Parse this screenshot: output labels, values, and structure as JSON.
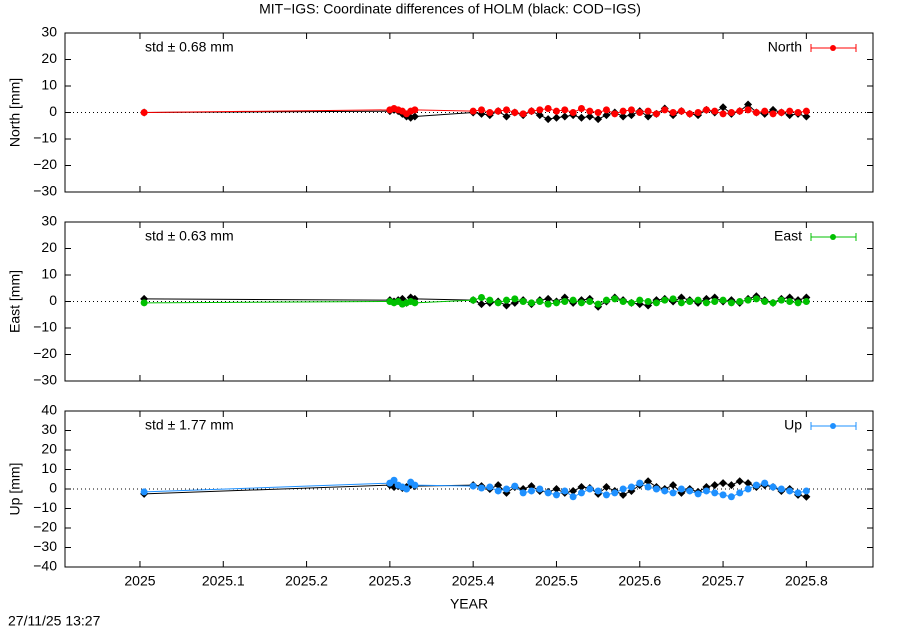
{
  "title": "MIT−IGS: Coordinate differences of HOLM (black: COD−IGS)",
  "xlabel": "YEAR",
  "timestamp": "27/11/25 13:27",
  "chart_data": [
    {
      "type": "line",
      "ylabel": "North [mm]",
      "annotation": "std ± 0.68 mm",
      "xlim": [
        2024.91,
        2025.88
      ],
      "ylim": [
        -30,
        30
      ],
      "xticks": [
        2025,
        2025.1,
        2025.2,
        2025.3,
        2025.4,
        2025.5,
        2025.6,
        2025.7,
        2025.8
      ],
      "yticks": [
        {
          "value": -30,
          "label": "−30"
        },
        {
          "value": -20,
          "label": "−20"
        },
        {
          "value": -10,
          "label": "−10"
        },
        0,
        10,
        20,
        30
      ],
      "x": [
        2025.005,
        2025.3,
        2025.305,
        2025.31,
        2025.315,
        2025.32,
        2025.325,
        2025.33,
        2025.4,
        2025.41,
        2025.42,
        2025.43,
        2025.44,
        2025.45,
        2025.46,
        2025.47,
        2025.48,
        2025.49,
        2025.5,
        2025.51,
        2025.52,
        2025.53,
        2025.54,
        2025.55,
        2025.56,
        2025.57,
        2025.58,
        2025.59,
        2025.6,
        2025.61,
        2025.62,
        2025.63,
        2025.64,
        2025.65,
        2025.66,
        2025.67,
        2025.68,
        2025.69,
        2025.7,
        2025.71,
        2025.72,
        2025.73,
        2025.74,
        2025.75,
        2025.76,
        2025.77,
        2025.78,
        2025.79,
        2025.8
      ],
      "series": [
        {
          "color": "#000000",
          "values": [
            0,
            0.5,
            1,
            0.5,
            -0.5,
            -1.5,
            -2,
            -1.5,
            0,
            -0.5,
            -1,
            0.5,
            -1.5,
            0,
            -1,
            0.5,
            -1,
            -2.5,
            -2,
            -1.5,
            -1,
            -2,
            -1.5,
            -2.5,
            -1,
            0,
            -1.5,
            -1,
            0.5,
            -1.5,
            -0.5,
            1.5,
            -1,
            0.5,
            -0.5,
            -1,
            1,
            0,
            2,
            -0.5,
            0.5,
            3,
            0,
            -0.5,
            1,
            0,
            -1,
            -0.5,
            -1.5
          ]
        },
        {
          "name": "North",
          "color": "#ff0000",
          "values": [
            0,
            1,
            1.5,
            1,
            0.5,
            -0.5,
            0.5,
            1,
            0.5,
            1,
            0,
            0.5,
            1,
            0,
            -0.5,
            0.5,
            1,
            1.5,
            0.5,
            1,
            0,
            1.5,
            0.5,
            0,
            1,
            -0.5,
            0.5,
            1,
            0,
            0.5,
            -0.5,
            1,
            0,
            0.5,
            -0.5,
            0,
            1,
            0.5,
            -0.5,
            0,
            0.5,
            1,
            0,
            0.5,
            -0.5,
            0,
            0.5,
            0,
            0.5
          ]
        }
      ]
    },
    {
      "type": "line",
      "ylabel": "East [mm]",
      "annotation": "std ± 0.63 mm",
      "xlim": [
        2024.91,
        2025.88
      ],
      "ylim": [
        -30,
        30
      ],
      "xticks": [
        2025,
        2025.1,
        2025.2,
        2025.3,
        2025.4,
        2025.5,
        2025.6,
        2025.7,
        2025.8
      ],
      "yticks": [
        {
          "value": -30,
          "label": "−30"
        },
        {
          "value": -20,
          "label": "−20"
        },
        {
          "value": -10,
          "label": "−10"
        },
        0,
        10,
        20,
        30
      ],
      "x": [
        2025.005,
        2025.3,
        2025.305,
        2025.31,
        2025.315,
        2025.32,
        2025.325,
        2025.33,
        2025.4,
        2025.41,
        2025.42,
        2025.43,
        2025.44,
        2025.45,
        2025.46,
        2025.47,
        2025.48,
        2025.49,
        2025.5,
        2025.51,
        2025.52,
        2025.53,
        2025.54,
        2025.55,
        2025.56,
        2025.57,
        2025.58,
        2025.59,
        2025.6,
        2025.61,
        2025.62,
        2025.63,
        2025.64,
        2025.65,
        2025.66,
        2025.67,
        2025.68,
        2025.69,
        2025.7,
        2025.71,
        2025.72,
        2025.73,
        2025.74,
        2025.75,
        2025.76,
        2025.77,
        2025.78,
        2025.79,
        2025.8
      ],
      "series": [
        {
          "color": "#000000",
          "values": [
            1,
            0.5,
            0,
            0.5,
            1,
            -0.5,
            1.5,
            1,
            0.5,
            -1,
            -0.5,
            0,
            -1.5,
            -0.5,
            0.5,
            -1,
            0.5,
            1,
            0,
            1.5,
            -0.5,
            0.5,
            1,
            -2,
            0,
            1.5,
            0.5,
            -0.5,
            -1,
            -1.5,
            0.5,
            1,
            0,
            1.5,
            0.5,
            -0.5,
            1,
            1.5,
            0,
            0.5,
            -0.5,
            1,
            2,
            0.5,
            -0.5,
            1,
            1.5,
            0.5,
            1.5
          ]
        },
        {
          "name": "East",
          "color": "#00c000",
          "values": [
            -0.5,
            0,
            -0.5,
            0,
            -1,
            -0.5,
            0,
            -0.5,
            0.5,
            1.5,
            0.5,
            -0.5,
            0.5,
            1,
            0,
            -0.5,
            0,
            -1,
            -0.5,
            0,
            0.5,
            -0.5,
            0,
            -1,
            0.5,
            1,
            0,
            -0.5,
            0.5,
            0,
            -0.5,
            0.5,
            1,
            -0.5,
            0,
            0.5,
            -0.5,
            0,
            0.5,
            -0.5,
            0,
            0.5,
            1,
            0,
            -0.5,
            0.5,
            0,
            -0.5,
            0
          ]
        }
      ]
    },
    {
      "type": "line",
      "ylabel": "Up [mm]",
      "annotation": "std ± 1.77 mm",
      "xlim": [
        2024.91,
        2025.88
      ],
      "ylim": [
        -40,
        40
      ],
      "xticks": [
        2025,
        2025.1,
        2025.2,
        2025.3,
        2025.4,
        2025.5,
        2025.6,
        2025.7,
        2025.8
      ],
      "yticks": [
        {
          "value": -40,
          "label": "−40"
        },
        {
          "value": -30,
          "label": "−30"
        },
        {
          "value": -20,
          "label": "−20"
        },
        {
          "value": -10,
          "label": "−10"
        },
        0,
        10,
        20,
        30,
        40
      ],
      "x": [
        2025.005,
        2025.3,
        2025.305,
        2025.31,
        2025.315,
        2025.32,
        2025.325,
        2025.33,
        2025.4,
        2025.41,
        2025.42,
        2025.43,
        2025.44,
        2025.45,
        2025.46,
        2025.47,
        2025.48,
        2025.49,
        2025.5,
        2025.51,
        2025.52,
        2025.53,
        2025.54,
        2025.55,
        2025.56,
        2025.57,
        2025.58,
        2025.59,
        2025.6,
        2025.61,
        2025.62,
        2025.63,
        2025.64,
        2025.65,
        2025.66,
        2025.67,
        2025.68,
        2025.69,
        2025.7,
        2025.71,
        2025.72,
        2025.73,
        2025.74,
        2025.75,
        2025.76,
        2025.77,
        2025.78,
        2025.79,
        2025.8
      ],
      "series": [
        {
          "color": "#000000",
          "values": [
            -2.5,
            2,
            1,
            1.5,
            0.5,
            1,
            2,
            1.5,
            2,
            1.5,
            0,
            2,
            -2,
            1,
            0,
            1.5,
            -1,
            -1.5,
            0,
            -2,
            -1,
            1,
            0.5,
            -2.5,
            1,
            -1,
            -3,
            -1,
            2,
            4,
            1,
            0,
            2,
            -2,
            0,
            -1.5,
            1,
            2,
            3,
            2,
            4,
            3,
            1,
            2,
            1,
            -1,
            0,
            -3,
            -4
          ]
        },
        {
          "name": "Up",
          "color": "#1e90ff",
          "values": [
            -1.5,
            3,
            4.5,
            2,
            1,
            0,
            3.5,
            2,
            1.5,
            0.5,
            1,
            -1,
            0,
            1.5,
            -2,
            -1,
            0,
            -2,
            -3,
            -1,
            -4,
            -2,
            0,
            -1,
            -3,
            -2,
            0,
            1,
            3,
            1,
            0,
            -1,
            -2,
            0,
            -1,
            -2.5,
            -1,
            -2,
            -3,
            -4,
            -2,
            0,
            2,
            3,
            1,
            0,
            -1,
            -2,
            -1
          ]
        }
      ]
    }
  ]
}
